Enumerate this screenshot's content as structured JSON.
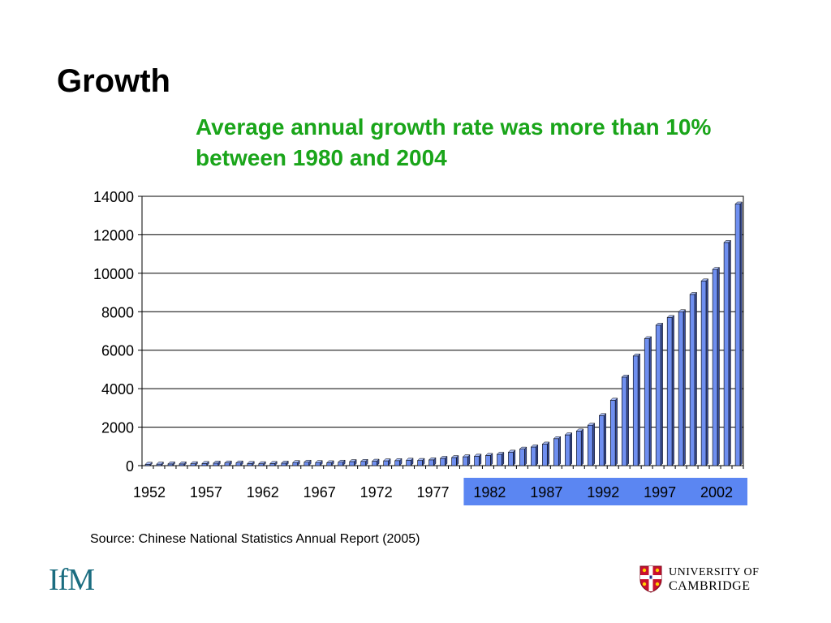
{
  "slide": {
    "title": "Growth",
    "subtitle": "Average annual growth rate was more than 10% between 1980 and 2004",
    "source": "Source: Chinese National Statistics Annual Report (2005)"
  },
  "logos": {
    "ifm": "IfM",
    "cambridge_line1": "UNIVERSITY OF",
    "cambridge_line2": "CAMBRIDGE"
  },
  "colors": {
    "subtitle": "#1aa51a",
    "bar": "#6f8ff0",
    "highlight": "#5b86f2",
    "ifm": "#1b6d80"
  },
  "chart_data": {
    "type": "bar",
    "title": "",
    "xlabel": "",
    "ylabel": "",
    "ylim": [
      0,
      14000
    ],
    "yticks": [
      0,
      2000,
      4000,
      6000,
      8000,
      10000,
      12000,
      14000
    ],
    "xtick_labels": [
      "1952",
      "1957",
      "1962",
      "1967",
      "1972",
      "1977",
      "1982",
      "1987",
      "1992",
      "1997",
      "2002"
    ],
    "highlighted_xticks": [
      "1982",
      "1987",
      "1992",
      "1997",
      "2002"
    ],
    "gridlines": true,
    "categories": [
      1952,
      1953,
      1954,
      1955,
      1956,
      1957,
      1958,
      1959,
      1960,
      1961,
      1962,
      1963,
      1964,
      1965,
      1966,
      1967,
      1968,
      1969,
      1970,
      1971,
      1972,
      1973,
      1974,
      1975,
      1976,
      1977,
      1978,
      1979,
      1980,
      1981,
      1982,
      1983,
      1984,
      1985,
      1986,
      1987,
      1988,
      1989,
      1990,
      1991,
      1992,
      1993,
      1994,
      1995,
      1996,
      1997,
      1998,
      1999,
      2000,
      2001,
      2002,
      2003,
      2004
    ],
    "values": [
      70,
      80,
      90,
      90,
      100,
      110,
      130,
      140,
      140,
      110,
      100,
      110,
      130,
      160,
      180,
      160,
      150,
      180,
      210,
      220,
      230,
      250,
      260,
      280,
      270,
      300,
      380,
      420,
      460,
      490,
      530,
      590,
      700,
      860,
      970,
      1120,
      1400,
      1600,
      1800,
      2100,
      2600,
      3400,
      4600,
      5700,
      6600,
      7300,
      7700,
      8000,
      8900,
      9600,
      10200,
      11600,
      13600
    ]
  }
}
